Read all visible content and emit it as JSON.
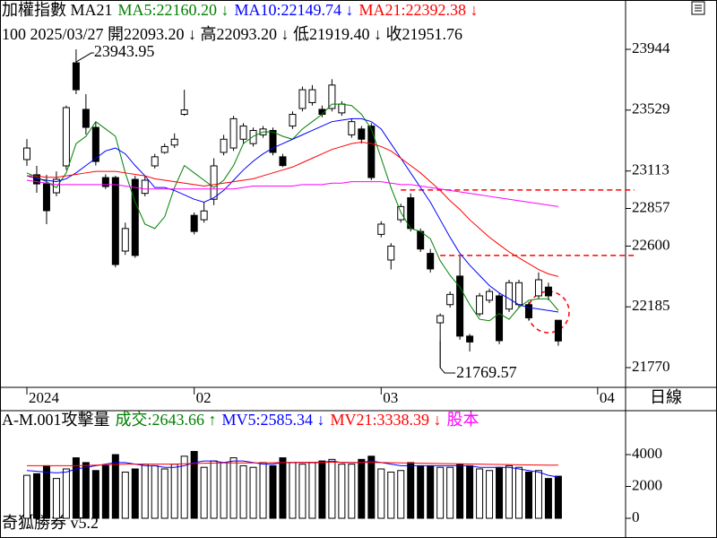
{
  "chart_data": {
    "type": "candlestick",
    "header": [
      {
        "text": "加權指數 MA21",
        "color": "#000000"
      },
      {
        "text": "MA5:22160.20 ↓",
        "color": "#008000"
      },
      {
        "text": "MA10:22149.74 ↓",
        "color": "#0000ff"
      },
      {
        "text": "MA21:22392.38 ↓",
        "color": "#ff0000"
      }
    ],
    "subheader": "100 2025/03/27 開22093.20 ↓ 高22093.20 ↓ 低21919.40 ↓ 收21951.76",
    "period": "日線",
    "open": [
      23191,
      23087,
      23025,
      22964,
      23148,
      23852,
      23534,
      23411,
      23068,
      23068,
      22566,
      23056,
      22960,
      23148,
      23240,
      23290,
      23500,
      22810,
      22780,
      22920,
      23240,
      23270,
      23330,
      23300,
      23360,
      23390,
      23210,
      23420,
      23540,
      23580,
      23534,
      23540,
      23510,
      23360,
      23400,
      23420,
      22680,
      22505,
      22780,
      22930,
      22700,
      22550,
      22076,
      22200,
      22395,
      21985,
      22137,
      22230,
      22260,
      22170,
      22200,
      22200,
      22260,
      22320,
      22093.2
    ],
    "high": [
      23331,
      23148,
      23087,
      23110,
      23560,
      23943.95,
      23638,
      23450,
      23090,
      23080,
      22760,
      23080,
      23080,
      23230,
      23300,
      23370,
      23668,
      22830,
      22900,
      23200,
      23360,
      23490,
      23440,
      23410,
      23420,
      23410,
      23230,
      23520,
      23690,
      23700,
      23560,
      23740,
      23590,
      23470,
      23420,
      23440,
      22770,
      22620,
      22890,
      22960,
      22720,
      22580,
      22140,
      22290,
      22530,
      22000,
      22280,
      22310,
      22280,
      22370,
      22370,
      22220,
      22420,
      22350,
      22093.2
    ],
    "low": [
      23148,
      22964,
      22750,
      22940,
      23120,
      23638,
      23362,
      23150,
      22990,
      22455,
      22540,
      22520,
      22940,
      23130,
      23230,
      23270,
      23490,
      22680,
      22760,
      22880,
      23220,
      23250,
      23300,
      23280,
      23340,
      23220,
      23140,
      23400,
      23520,
      23560,
      23480,
      23520,
      23490,
      23340,
      23300,
      23050,
      22660,
      22440,
      22760,
      22700,
      22560,
      22420,
      21769.57,
      22180,
      21960,
      21880,
      22120,
      22210,
      21930,
      22150,
      22180,
      22090,
      22240,
      22230,
      21919.4
    ],
    "close": [
      23270,
      23025,
      22842,
      23056,
      23546,
      23668,
      23411,
      23178,
      23007,
      22474,
      22720,
      22536,
      23050,
      23210,
      23280,
      23330,
      23530,
      22700,
      22840,
      23148,
      23330,
      23470,
      23420,
      23390,
      23400,
      23240,
      23150,
      23500,
      23668,
      23668,
      23500,
      23700,
      23570,
      23450,
      23330,
      23068,
      22750,
      22600,
      22870,
      22720,
      22580,
      22444,
      22125,
      22270,
      21985,
      21945,
      22260,
      22290,
      21954,
      22350,
      22350,
      22110,
      22370,
      22260,
      21951.76
    ],
    "series": [
      {
        "color": "#008000",
        "values": [
          23100,
          23070,
          23040,
          23000,
          23100,
          23300,
          23350,
          23450,
          23400,
          23350,
          23100,
          22900,
          22750,
          22720,
          22800,
          23000,
          23150,
          23100,
          23050,
          23000,
          23050,
          23150,
          23300,
          23350,
          23380,
          23380,
          23350,
          23330,
          23400,
          23450,
          23500,
          23570,
          23570,
          23560,
          23500,
          23400,
          23200,
          23000,
          22830,
          22720,
          22700,
          22650,
          22500,
          22400,
          22320,
          22200,
          22100,
          22090,
          22140,
          22100,
          22180,
          22230,
          22240,
          22240,
          22160.2
        ]
      },
      {
        "color": "#0000ff",
        "values": [
          23080,
          23060,
          23050,
          23040,
          23060,
          23100,
          23150,
          23200,
          23250,
          23270,
          23230,
          23150,
          23080,
          23000,
          23000,
          22980,
          22950,
          22920,
          22900,
          22930,
          22980,
          23050,
          23120,
          23180,
          23230,
          23270,
          23300,
          23330,
          23360,
          23390,
          23420,
          23450,
          23460,
          23470,
          23470,
          23450,
          23400,
          23300,
          23200,
          23100,
          23000,
          22900,
          22780,
          22660,
          22550,
          22470,
          22400,
          22330,
          22280,
          22240,
          22200,
          22180,
          22170,
          22160,
          22149.74
        ]
      },
      {
        "color": "#ff0000",
        "values": [
          23080,
          23080,
          23070,
          23070,
          23080,
          23090,
          23100,
          23110,
          23110,
          23110,
          23100,
          23090,
          23080,
          23060,
          23050,
          23040,
          23030,
          23020,
          23010,
          23020,
          23030,
          23040,
          23050,
          23060,
          23080,
          23100,
          23120,
          23140,
          23170,
          23200,
          23230,
          23260,
          23280,
          23300,
          23310,
          23300,
          23280,
          23250,
          23200,
          23150,
          23100,
          23040,
          22980,
          22910,
          22850,
          22780,
          22720,
          22660,
          22610,
          22560,
          22520,
          22480,
          22440,
          22410,
          22392.38
        ]
      },
      {
        "color": "#ff00ff",
        "values": [
          23050,
          23040,
          23030,
          23020,
          23020,
          23020,
          23020,
          23020,
          23020,
          23020,
          23010,
          23000,
          22990,
          22990,
          22990,
          22990,
          22990,
          22990,
          22990,
          22990,
          22990,
          22990,
          23000,
          23010,
          23010,
          23010,
          23010,
          23010,
          23020,
          23020,
          23020,
          23030,
          23030,
          23040,
          23040,
          23040,
          23040,
          23030,
          23020,
          23020,
          23010,
          23000,
          22990,
          22980,
          22970,
          22960,
          22950,
          22940,
          22930,
          22920,
          22910,
          22900,
          22890,
          22880,
          22870
        ]
      }
    ],
    "ylim": [
      21635,
      24281
    ],
    "yticks": [
      23944,
      23529,
      23113,
      22857,
      22600,
      22185,
      21770
    ],
    "xticks": [
      {
        "value": 0,
        "label": "2024"
      },
      {
        "value": 17,
        "label": "02"
      },
      {
        "value": 36,
        "label": "03"
      },
      {
        "value": 58,
        "label": "04"
      }
    ],
    "ref_lines": [
      {
        "value": 22983,
        "from": 38,
        "color": "#ff0000"
      },
      {
        "value": 22536,
        "from": 42,
        "color": "#ff0000"
      }
    ],
    "volume": {
      "header": [
        {
          "text": "A-M.001攻擊量",
          "color": "#000000"
        },
        {
          "text": "成交:2643.66 ↑",
          "color": "#008000"
        },
        {
          "text": "MV5:2585.34 ↓",
          "color": "#0000ff"
        },
        {
          "text": "MV21:3338.39 ↓",
          "color": "#ff0000"
        },
        {
          "text": "股本",
          "color": "#ff00ff"
        }
      ],
      "values": [
        2700,
        2800,
        3300,
        2500,
        3100,
        3800,
        3500,
        3000,
        3300,
        4000,
        2900,
        3100,
        3400,
        3300,
        3100,
        3400,
        3900,
        4200,
        3200,
        3600,
        3500,
        3800,
        3300,
        3200,
        3500,
        3300,
        3800,
        3500,
        3400,
        3500,
        3600,
        3700,
        3400,
        3400,
        3700,
        3900,
        3100,
        2900,
        3000,
        3500,
        3300,
        3300,
        3200,
        3200,
        3400,
        3300,
        3100,
        3000,
        3200,
        3300,
        3200,
        2900,
        3000,
        2500,
        2643.66
      ],
      "series": [
        {
          "color": "#0000ff",
          "values": [
            3000,
            2950,
            2900,
            2850,
            2900,
            3100,
            3200,
            3300,
            3400,
            3500,
            3500,
            3400,
            3300,
            3300,
            3200,
            3200,
            3300,
            3500,
            3600,
            3600,
            3500,
            3600,
            3600,
            3500,
            3400,
            3400,
            3500,
            3500,
            3500,
            3500,
            3500,
            3600,
            3500,
            3500,
            3500,
            3600,
            3500,
            3400,
            3300,
            3300,
            3300,
            3300,
            3300,
            3300,
            3300,
            3300,
            3200,
            3200,
            3200,
            3200,
            3100,
            3000,
            2900,
            2700,
            2585.34
          ]
        },
        {
          "color": "#ff0000",
          "values": [
            3300,
            3300,
            3300,
            3300,
            3300,
            3300,
            3320,
            3340,
            3360,
            3380,
            3400,
            3400,
            3400,
            3400,
            3400,
            3400,
            3420,
            3440,
            3460,
            3470,
            3480,
            3480,
            3480,
            3480,
            3480,
            3490,
            3500,
            3510,
            3520,
            3520,
            3520,
            3520,
            3520,
            3510,
            3510,
            3510,
            3500,
            3490,
            3480,
            3470,
            3460,
            3450,
            3440,
            3430,
            3420,
            3410,
            3400,
            3390,
            3380,
            3370,
            3360,
            3350,
            3345,
            3340,
            3338.39
          ]
        }
      ],
      "ylim": [
        -1239,
        5352
      ],
      "yticks": [
        4000,
        2000,
        0
      ]
    },
    "footer": "奇狐勝券 v5.2"
  }
}
